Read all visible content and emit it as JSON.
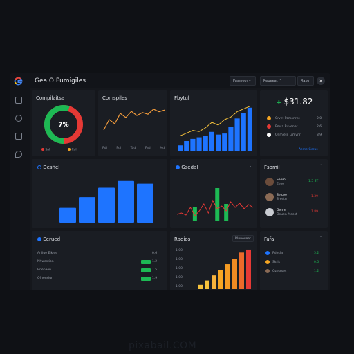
{
  "window": {
    "title": "Gea O Pumigiles",
    "btn1": "Pasmeor",
    "btn2": "Reueeat",
    "btn3": "Raxo"
  },
  "colors": {
    "accent": "#1e74ff",
    "green": "#1db954",
    "red": "#e53935",
    "orange": "#f6a623",
    "bg": "#15171c"
  },
  "icons": [
    "google-logo-icon",
    "home-icon",
    "chat-icon",
    "briefcase-icon",
    "drop-icon",
    "close-icon"
  ],
  "panel1": {
    "title": "Compilaitsa",
    "gauge_label": "7%",
    "legend": [
      "Sal",
      "Col"
    ],
    "gauge_green_fraction": 0.55
  },
  "panel2": {
    "title": "Comspiles",
    "xlabels": [
      "Pdl",
      "Fdl",
      "Tad",
      "Fad",
      "Md"
    ],
    "chart_data": {
      "type": "line",
      "y": [
        30,
        55,
        45,
        70,
        60,
        75,
        65,
        72,
        68,
        80,
        74,
        78
      ]
    }
  },
  "panel3": {
    "title": "Fbytul",
    "chart_data": {
      "type": "bar",
      "values": [
        10,
        18,
        22,
        25,
        28,
        35,
        30,
        32,
        45,
        60,
        70,
        80
      ],
      "line": [
        20,
        25,
        30,
        28,
        35,
        45,
        40,
        50,
        55,
        65,
        70,
        75
      ]
    }
  },
  "panel4": {
    "amount": "$31.82",
    "items": [
      {
        "label": "Crvnt Pcmonrce",
        "value": "2.0",
        "color": "#f6a623"
      },
      {
        "label": "Pmsa Ruvener",
        "value": "2.6",
        "color": "#e53935"
      },
      {
        "label": "Onmiete Lrmvnr",
        "value": "3.9",
        "color": "#ffffff"
      }
    ],
    "link": "Aeme Geras"
  },
  "panel5": {
    "title": "Desfiel",
    "chart_data": {
      "type": "bar",
      "values": [
        22,
        38,
        52,
        62,
        58
      ]
    }
  },
  "panel6": {
    "title": "Gsedal",
    "chart_data": {
      "type": "line",
      "red": [
        10,
        12,
        9,
        20,
        8,
        15,
        25,
        12,
        30,
        18,
        22,
        15,
        28,
        20,
        26,
        18,
        24,
        20
      ],
      "green_bars": [
        0,
        0,
        0,
        0,
        20,
        0,
        0,
        0,
        0,
        48,
        0,
        25,
        0,
        0,
        0,
        0,
        0,
        0
      ]
    }
  },
  "panel7": {
    "title": "Fsomil",
    "users": [
      {
        "name": "Saem",
        "sub": "Eeve",
        "value": "1.5 ST"
      },
      {
        "name": "Seicee",
        "sub": "Sreetn",
        "value": "1.39"
      },
      {
        "name": "Genm",
        "sub": "Oeuen Meest",
        "value": "1.89"
      }
    ]
  },
  "panel8": {
    "title": "Eerued",
    "rows": [
      {
        "label": "Anilue Elkiee",
        "value": "0.6"
      },
      {
        "label": "Nhwestion",
        "value": "1.2"
      },
      {
        "label": "Rnepaen",
        "value": "1.5"
      },
      {
        "label": "Ofnensiun",
        "value": "1.9"
      }
    ]
  },
  "panel9": {
    "title": "Radios",
    "btn": "Rlnnoveer",
    "ylabels": [
      "1.00",
      "1.00",
      "1.00",
      "1.00",
      "1.00"
    ],
    "chart_data": {
      "type": "bar",
      "values": [
        10,
        20,
        32,
        45,
        58,
        70,
        85,
        92
      ]
    }
  },
  "panel10": {
    "title": "Fafa",
    "rows": [
      {
        "label": "Pdesfal",
        "value": "5.2"
      },
      {
        "label": "Skris",
        "value": "0.5"
      },
      {
        "label": "Ozesrses",
        "value": "1.2"
      }
    ]
  },
  "watermark": "pixabail.COM"
}
